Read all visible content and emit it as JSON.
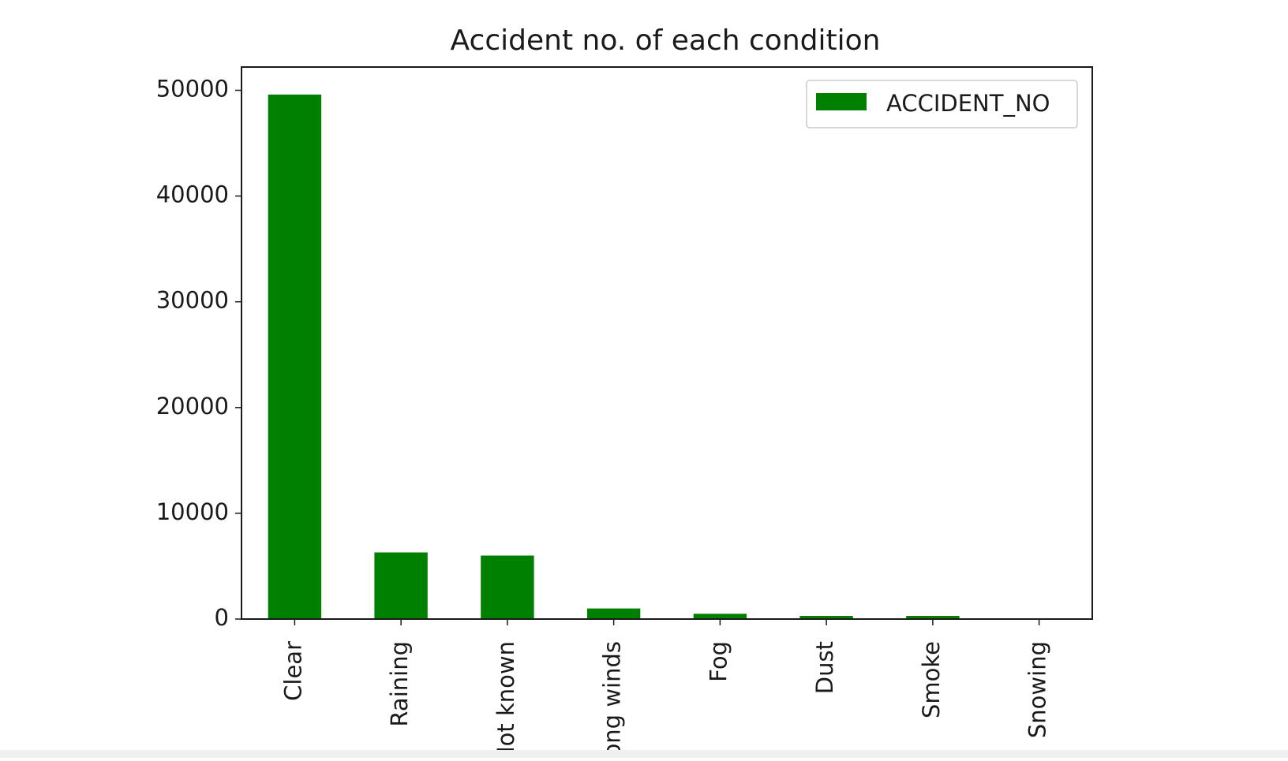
{
  "chart_data": {
    "type": "bar",
    "title": "Accident no. of each condition",
    "xlabel": "",
    "ylabel": "",
    "categories": [
      "Clear",
      "Raining",
      "Not known",
      "Strong winds",
      "Fog",
      "Dust",
      "Smoke",
      "Snowing"
    ],
    "series": [
      {
        "name": "ACCIDENT_NO",
        "values": [
          49600,
          6300,
          6000,
          1000,
          500,
          300,
          300,
          50
        ],
        "color": "#008000"
      }
    ],
    "yticks": [
      0,
      10000,
      20000,
      30000,
      40000,
      50000
    ],
    "ylim": [
      0,
      52200
    ],
    "grid": false,
    "legend_position": "top-right",
    "x_tick_rotation": "vertical"
  }
}
